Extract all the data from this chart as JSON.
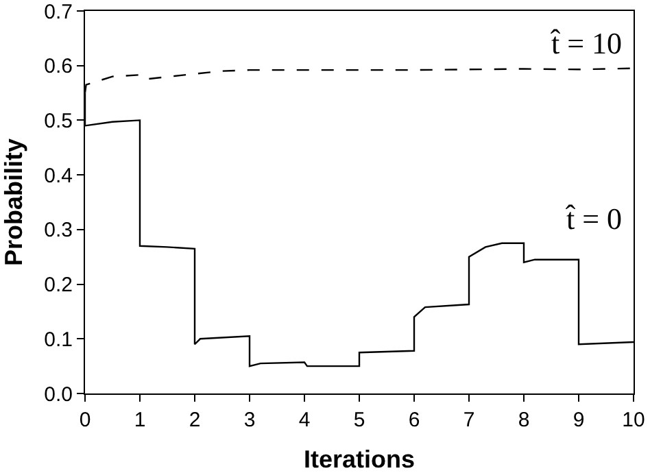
{
  "chart_data": {
    "type": "line",
    "xlabel": "Iterations",
    "ylabel": "Probability",
    "xlim": [
      0,
      10
    ],
    "ylim": [
      0,
      0.7
    ],
    "xticks": [
      0,
      1,
      2,
      3,
      4,
      5,
      6,
      7,
      8,
      9,
      10
    ],
    "yticks": [
      {
        "value": 0,
        "label": "0.0"
      },
      {
        "value": 0.1,
        "label": "0.1"
      },
      {
        "value": 0.2,
        "label": "0.2"
      },
      {
        "value": 0.3,
        "label": "0.3"
      },
      {
        "value": 0.4,
        "label": "0.4"
      },
      {
        "value": 0.5,
        "label": "0.5"
      },
      {
        "value": 0.6,
        "label": "0.6"
      },
      {
        "value": 0.7,
        "label": "0.7"
      }
    ],
    "grid": false,
    "legend": false,
    "marker": "none",
    "series": [
      {
        "name": "t̂ = 10",
        "color": "#000000",
        "line_style": "dashed",
        "x": [
          0,
          0.02,
          0.5,
          1,
          1.1,
          2,
          2.5,
          3,
          4,
          5,
          6,
          7,
          8,
          9,
          10
        ],
        "values": [
          0.55,
          0.565,
          0.58,
          0.583,
          0.575,
          0.585,
          0.59,
          0.592,
          0.592,
          0.592,
          0.592,
          0.593,
          0.594,
          0.593,
          0.595
        ]
      },
      {
        "name": "t̂ = 0",
        "color": "#000000",
        "line_style": "solid",
        "x": [
          0,
          0,
          0.5,
          1,
          1,
          1.5,
          2,
          2,
          2.1,
          3,
          3,
          3.2,
          4,
          4.05,
          5,
          5,
          6,
          6,
          6.2,
          7,
          7,
          7.3,
          7.6,
          8,
          8,
          8.2,
          9,
          9,
          10
        ],
        "values": [
          0.55,
          0.49,
          0.497,
          0.5,
          0.27,
          0.268,
          0.265,
          0.09,
          0.1,
          0.105,
          0.05,
          0.055,
          0.057,
          0.05,
          0.05,
          0.075,
          0.078,
          0.14,
          0.158,
          0.163,
          0.25,
          0.268,
          0.275,
          0.275,
          0.24,
          0.245,
          0.245,
          0.09,
          0.094
        ]
      }
    ]
  }
}
